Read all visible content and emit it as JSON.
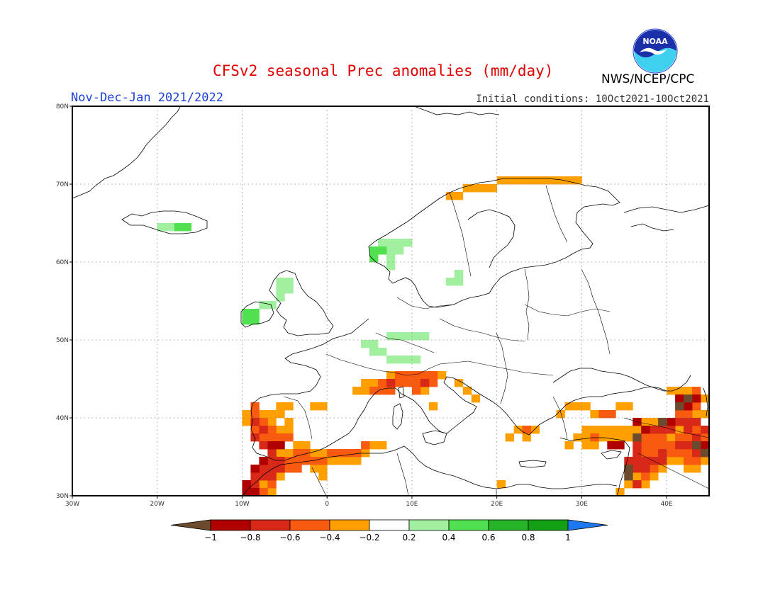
{
  "header": {
    "title": "CFSv2 seasonal Prec anomalies (mm/day)",
    "period": "Nov-Dec-Jan 2021/2022",
    "initial_conditions": "Initial conditions: 10Oct2021-10Oct2021",
    "agency": "NWS/NCEP/CPC",
    "logo_text": "NOAA"
  },
  "map": {
    "lon_range": [
      -30,
      45
    ],
    "lat_range": [
      30,
      80
    ],
    "lon_ticks": [
      {
        "value": -30,
        "label": "30W"
      },
      {
        "value": -20,
        "label": "20W"
      },
      {
        "value": -10,
        "label": "10W"
      },
      {
        "value": 0,
        "label": "0"
      },
      {
        "value": 10,
        "label": "10E"
      },
      {
        "value": 20,
        "label": "20E"
      },
      {
        "value": 30,
        "label": "30E"
      },
      {
        "value": 40,
        "label": "40E"
      }
    ],
    "lat_ticks": [
      {
        "value": 30,
        "label": "30N"
      },
      {
        "value": 40,
        "label": "40N"
      },
      {
        "value": 50,
        "label": "50N"
      },
      {
        "value": 60,
        "label": "60N"
      },
      {
        "value": 70,
        "label": "70N"
      },
      {
        "value": 80,
        "label": "80N"
      }
    ],
    "grid": true
  },
  "colorbar": {
    "labels": [
      "−1",
      "−0.8",
      "−0.6",
      "−0.4",
      "−0.2",
      "0.2",
      "0.4",
      "0.6",
      "0.8",
      "1"
    ],
    "colors": [
      "#6b4a2e",
      "#b00000",
      "#d82818",
      "#f85a10",
      "#ffa000",
      "#ffffff",
      "#a0f0a0",
      "#50e050",
      "#28b428",
      "#14a014",
      "#1e78f0"
    ]
  },
  "anomaly_regions": [
    {
      "name": "iceland",
      "color": "#a0f0a0",
      "cells": [
        [
          -19.5,
          64.5
        ],
        [
          -18.5,
          64.5
        ]
      ]
    },
    {
      "name": "iceland-core",
      "color": "#50e050",
      "cells": [
        [
          -17.5,
          64.5
        ],
        [
          -16.5,
          64.5
        ]
      ]
    },
    {
      "name": "ireland",
      "color": "#50e050",
      "cells": [
        [
          -9.5,
          53.5
        ],
        [
          -8.5,
          53.5
        ],
        [
          -9.5,
          52.5
        ],
        [
          -8.5,
          52.5
        ]
      ]
    },
    {
      "name": "ireland-light",
      "color": "#a0f0a0",
      "cells": [
        [
          -7.5,
          54.5
        ],
        [
          -6.5,
          54.5
        ]
      ]
    },
    {
      "name": "scotland",
      "color": "#a0f0a0",
      "cells": [
        [
          -5.5,
          57.5
        ],
        [
          -4.5,
          57.5
        ],
        [
          -5.5,
          56.5
        ],
        [
          -4.5,
          56.5
        ],
        [
          -5.5,
          55.5
        ]
      ]
    },
    {
      "name": "norway",
      "color": "#a0f0a0",
      "cells": [
        [
          6.5,
          62.5
        ],
        [
          7.5,
          62.5
        ],
        [
          8.5,
          62.5
        ],
        [
          9.5,
          62.5
        ],
        [
          6.5,
          61.5
        ],
        [
          7.5,
          61.5
        ],
        [
          8.5,
          61.5
        ],
        [
          7.5,
          60.5
        ],
        [
          7.5,
          59.5
        ],
        [
          6.5,
          62.5
        ]
      ]
    },
    {
      "name": "norway-coast",
      "color": "#50e050",
      "cells": [
        [
          5.5,
          61.5
        ],
        [
          6.5,
          61.5
        ],
        [
          5.5,
          60.5
        ]
      ]
    },
    {
      "name": "sweden",
      "color": "#a0f0a0",
      "cells": [
        [
          15.5,
          58.5
        ],
        [
          14.5,
          57.5
        ],
        [
          15.5,
          57.5
        ]
      ]
    },
    {
      "name": "germany-france",
      "color": "#a0f0a0",
      "cells": [
        [
          7.5,
          50.5
        ],
        [
          8.5,
          50.5
        ],
        [
          9.5,
          50.5
        ],
        [
          10.5,
          50.5
        ],
        [
          11.5,
          50.5
        ],
        [
          4.5,
          49.5
        ],
        [
          5.5,
          49.5
        ],
        [
          5.5,
          48.5
        ],
        [
          6.5,
          48.5
        ],
        [
          7.5,
          47.5
        ],
        [
          8.5,
          47.5
        ],
        [
          9.5,
          47.5
        ],
        [
          10.5,
          47.5
        ]
      ]
    },
    {
      "name": "north-norway",
      "color": "#ffa000",
      "cells": [
        [
          17.5,
          69.5
        ],
        [
          18.5,
          69.5
        ],
        [
          19.5,
          69.5
        ],
        [
          20.5,
          70.5
        ],
        [
          21.5,
          70.5
        ],
        [
          22.5,
          70.5
        ],
        [
          23.5,
          70.5
        ],
        [
          24.5,
          70.5
        ],
        [
          25.5,
          70.5
        ],
        [
          26.5,
          70.5
        ],
        [
          27.5,
          70.5
        ],
        [
          28.5,
          70.5
        ],
        [
          29.5,
          70.5
        ],
        [
          16.5,
          69.5
        ],
        [
          15.5,
          68.5
        ],
        [
          14.5,
          68.5
        ]
      ]
    },
    {
      "name": "alps",
      "color": "#ffa000",
      "cells": [
        [
          4.5,
          44.5
        ],
        [
          5.5,
          44.5
        ],
        [
          3.5,
          43.5
        ],
        [
          4.5,
          43.5
        ],
        [
          7.5,
          45.5
        ],
        [
          11.5,
          43.5
        ],
        [
          13.5,
          45.5
        ],
        [
          15.5,
          44.5
        ],
        [
          16.5,
          43.5
        ],
        [
          17.5,
          42.5
        ],
        [
          12.5,
          41.5
        ]
      ]
    },
    {
      "name": "alps-core",
      "color": "#f85a10",
      "cells": [
        [
          5.5,
          43.5
        ],
        [
          6.5,
          43.5
        ],
        [
          7.5,
          43.5
        ],
        [
          6.5,
          44.5
        ],
        [
          8.5,
          44.5
        ],
        [
          9.5,
          44.5
        ],
        [
          10.5,
          44.5
        ],
        [
          8.5,
          45.5
        ],
        [
          9.5,
          45.5
        ],
        [
          10.5,
          45.5
        ],
        [
          11.5,
          45.5
        ],
        [
          12.5,
          45.5
        ],
        [
          10.5,
          43.5
        ],
        [
          12.5,
          44.5
        ]
      ]
    },
    {
      "name": "alps-deep",
      "color": "#d82818",
      "cells": [
        [
          7.5,
          44.5
        ],
        [
          11.5,
          44.5
        ]
      ]
    },
    {
      "name": "iberia-orange",
      "color": "#ffa000",
      "cells": [
        [
          -9.5,
          40.5
        ],
        [
          -9.5,
          39.5
        ],
        [
          -7.5,
          40.5
        ],
        [
          -6.5,
          40.5
        ],
        [
          -6.5,
          39.5
        ],
        [
          -5.5,
          41.5
        ],
        [
          -4.5,
          41.5
        ],
        [
          -5.5,
          40.5
        ],
        [
          -4.5,
          39.5
        ],
        [
          -5.5,
          38.5
        ],
        [
          -4.5,
          38.5
        ],
        [
          -1.5,
          41.5
        ],
        [
          -0.5,
          41.5
        ],
        [
          -5.5,
          35.5
        ],
        [
          -4.5,
          35.5
        ],
        [
          -3.5,
          36.5
        ],
        [
          -2.5,
          36.5
        ],
        [
          -1.5,
          35.5
        ],
        [
          -0.5,
          35.5
        ],
        [
          0.5,
          34.5
        ],
        [
          1.5,
          34.5
        ],
        [
          2.5,
          34.5
        ],
        [
          3.5,
          34.5
        ],
        [
          4.5,
          35.5
        ],
        [
          5.5,
          36.5
        ],
        [
          6.5,
          36.5
        ],
        [
          -1.5,
          33.5
        ],
        [
          -0.5,
          33.5
        ],
        [
          -0.5,
          32.5
        ],
        [
          -5.5,
          32.5
        ],
        [
          -6.5,
          30.5
        ],
        [
          -7.5,
          31.5
        ]
      ]
    },
    {
      "name": "iberia-red",
      "color": "#f85a10",
      "cells": [
        [
          -8.5,
          41.5
        ],
        [
          -8.5,
          40.5
        ],
        [
          -7.5,
          39.5
        ],
        [
          -8.5,
          38.5
        ],
        [
          -7.5,
          37.5
        ],
        [
          -6.5,
          37.5
        ],
        [
          -5.5,
          37.5
        ],
        [
          -4.5,
          37.5
        ],
        [
          -6.5,
          38.5
        ],
        [
          -3.5,
          35.5
        ],
        [
          -2.5,
          35.5
        ],
        [
          -1.5,
          34.5
        ],
        [
          -0.5,
          34.5
        ],
        [
          0.5,
          35.5
        ],
        [
          1.5,
          35.5
        ],
        [
          2.5,
          35.5
        ],
        [
          3.5,
          35.5
        ],
        [
          4.5,
          36.5
        ],
        [
          -4.5,
          34.5
        ],
        [
          -3.5,
          34.5
        ],
        [
          -4.5,
          33.5
        ],
        [
          -3.5,
          33.5
        ],
        [
          -6.5,
          31.5
        ],
        [
          -7.5,
          30.5
        ],
        [
          -2.5,
          34.5
        ]
      ]
    },
    {
      "name": "iberia-deep",
      "color": "#d82818",
      "cells": [
        [
          -8.5,
          39.5
        ],
        [
          -7.5,
          38.5
        ],
        [
          -8.5,
          37.5
        ],
        [
          -7.5,
          36.5
        ],
        [
          -6.5,
          35.5
        ],
        [
          -6.5,
          34.5
        ],
        [
          -5.5,
          34.5
        ],
        [
          -7.5,
          33.5
        ],
        [
          -6.5,
          33.5
        ],
        [
          -5.5,
          33.5
        ],
        [
          -8.5,
          32.5
        ],
        [
          -7.5,
          32.5
        ],
        [
          -6.5,
          32.5
        ],
        [
          -8.5,
          31.5
        ]
      ]
    },
    {
      "name": "morocco-dark",
      "color": "#b00000",
      "cells": [
        [
          -7.5,
          34.5
        ],
        [
          -8.5,
          30.5
        ],
        [
          -9.5,
          30.5
        ],
        [
          -9.5,
          31.5
        ],
        [
          -8.5,
          33.5
        ],
        [
          -5.5,
          36.5
        ],
        [
          -6.5,
          36.5
        ]
      ]
    },
    {
      "name": "greece",
      "color": "#ffa000",
      "cells": [
        [
          21.5,
          37.5
        ],
        [
          23.5,
          37.5
        ],
        [
          24.5,
          38.5
        ],
        [
          22.5,
          38.5
        ]
      ]
    },
    {
      "name": "greece-red",
      "color": "#f85a10",
      "cells": [
        [
          23.5,
          38.5
        ]
      ]
    },
    {
      "name": "libya",
      "color": "#ffa000",
      "cells": [
        [
          20.5,
          31.5
        ]
      ]
    },
    {
      "name": "turkey-orange",
      "color": "#ffa000",
      "cells": [
        [
          27.5,
          40.5
        ],
        [
          28.5,
          41.5
        ],
        [
          29.5,
          41.5
        ],
        [
          30.5,
          41.5
        ],
        [
          31.5,
          40.5
        ],
        [
          34.5,
          41.5
        ],
        [
          35.5,
          41.5
        ],
        [
          30.5,
          38.5
        ],
        [
          31.5,
          38.5
        ],
        [
          32.5,
          38.5
        ],
        [
          33.5,
          38.5
        ],
        [
          34.5,
          38.5
        ],
        [
          35.5,
          38.5
        ],
        [
          36.5,
          38.5
        ],
        [
          28.5,
          36.5
        ],
        [
          29.5,
          37.5
        ],
        [
          30.5,
          37.5
        ],
        [
          32.5,
          37.5
        ],
        [
          33.5,
          37.5
        ],
        [
          34.5,
          37.5
        ],
        [
          35.5,
          37.5
        ],
        [
          36.5,
          37.5
        ],
        [
          31.5,
          36.5
        ],
        [
          30.5,
          36.5
        ],
        [
          37.5,
          39.5
        ],
        [
          38.5,
          39.5
        ],
        [
          39.5,
          39.5
        ],
        [
          40.5,
          39.5
        ],
        [
          41.5,
          38.5
        ],
        [
          40.5,
          37.5
        ],
        [
          43.5,
          40.5
        ],
        [
          44.5,
          40.5
        ],
        [
          43.5,
          36.5
        ],
        [
          44.5,
          34.5
        ],
        [
          39.5,
          33.5
        ],
        [
          40.5,
          34.5
        ],
        [
          41.5,
          34.5
        ],
        [
          42.5,
          33.5
        ],
        [
          43.5,
          33.5
        ],
        [
          38.5,
          32.5
        ],
        [
          35.5,
          31.5
        ],
        [
          36.5,
          32.5
        ],
        [
          37.5,
          31.5
        ],
        [
          34.5,
          30.5
        ],
        [
          40.5,
          43.5
        ],
        [
          41.5,
          43.5
        ],
        [
          42.5,
          43.5
        ],
        [
          43.5,
          42.5
        ],
        [
          44.5,
          42.5
        ]
      ]
    },
    {
      "name": "turkey-red",
      "color": "#f85a10",
      "cells": [
        [
          32.5,
          40.5
        ],
        [
          33.5,
          40.5
        ],
        [
          31.5,
          37.5
        ],
        [
          37.5,
          37.5
        ],
        [
          38.5,
          37.5
        ],
        [
          39.5,
          37.5
        ],
        [
          37.5,
          36.5
        ],
        [
          38.5,
          36.5
        ],
        [
          39.5,
          36.5
        ],
        [
          40.5,
          36.5
        ],
        [
          37.5,
          35.5
        ],
        [
          38.5,
          35.5
        ],
        [
          40.5,
          35.5
        ],
        [
          41.5,
          35.5
        ],
        [
          42.5,
          34.5
        ],
        [
          43.5,
          34.5
        ],
        [
          42.5,
          35.5
        ],
        [
          38.5,
          33.5
        ],
        [
          37.5,
          32.5
        ],
        [
          44.5,
          35.5
        ],
        [
          44.5,
          36.5
        ],
        [
          42.5,
          40.5
        ],
        [
          43.5,
          41.5
        ],
        [
          42.5,
          41.5
        ],
        [
          41.5,
          40.5
        ],
        [
          43.5,
          38.5
        ],
        [
          44.5,
          37.5
        ],
        [
          42.5,
          37.5
        ],
        [
          41.5,
          37.5
        ],
        [
          42.5,
          42.5
        ],
        [
          43.5,
          43.5
        ]
      ]
    },
    {
      "name": "turkey-deep",
      "color": "#d82818",
      "cells": [
        [
          36.5,
          36.5
        ],
        [
          36.5,
          35.5
        ],
        [
          35.5,
          34.5
        ],
        [
          36.5,
          34.5
        ],
        [
          37.5,
          34.5
        ],
        [
          36.5,
          33.5
        ],
        [
          37.5,
          33.5
        ],
        [
          38.5,
          34.5
        ],
        [
          39.5,
          35.5
        ],
        [
          39.5,
          34.5
        ],
        [
          41.5,
          36.5
        ],
        [
          42.5,
          36.5
        ],
        [
          43.5,
          35.5
        ],
        [
          40.5,
          38.5
        ],
        [
          39.5,
          38.5
        ],
        [
          38.5,
          38.5
        ],
        [
          41.5,
          39.5
        ],
        [
          42.5,
          39.5
        ],
        [
          43.5,
          39.5
        ],
        [
          43.5,
          37.5
        ],
        [
          44.5,
          38.5
        ],
        [
          42.5,
          38.5
        ],
        [
          36.5,
          31.5
        ]
      ]
    },
    {
      "name": "turkey-dark",
      "color": "#b00000",
      "cells": [
        [
          33.5,
          36.5
        ],
        [
          34.5,
          36.5
        ],
        [
          35.5,
          33.5
        ],
        [
          37.5,
          38.5
        ],
        [
          36.5,
          39.5
        ],
        [
          40.5,
          39.5
        ],
        [
          43.5,
          42.5
        ],
        [
          42.5,
          41.5
        ],
        [
          44.5,
          36.5
        ],
        [
          41.5,
          42.5
        ]
      ]
    },
    {
      "name": "turkey-brown",
      "color": "#6b4a2e",
      "cells": [
        [
          35.5,
          32.5
        ],
        [
          35.5,
          33.5
        ],
        [
          36.5,
          37.5
        ],
        [
          42.5,
          42.5
        ],
        [
          41.5,
          41.5
        ],
        [
          43.5,
          36.5
        ],
        [
          44.5,
          35.5
        ],
        [
          39.5,
          39.5
        ]
      ]
    }
  ]
}
